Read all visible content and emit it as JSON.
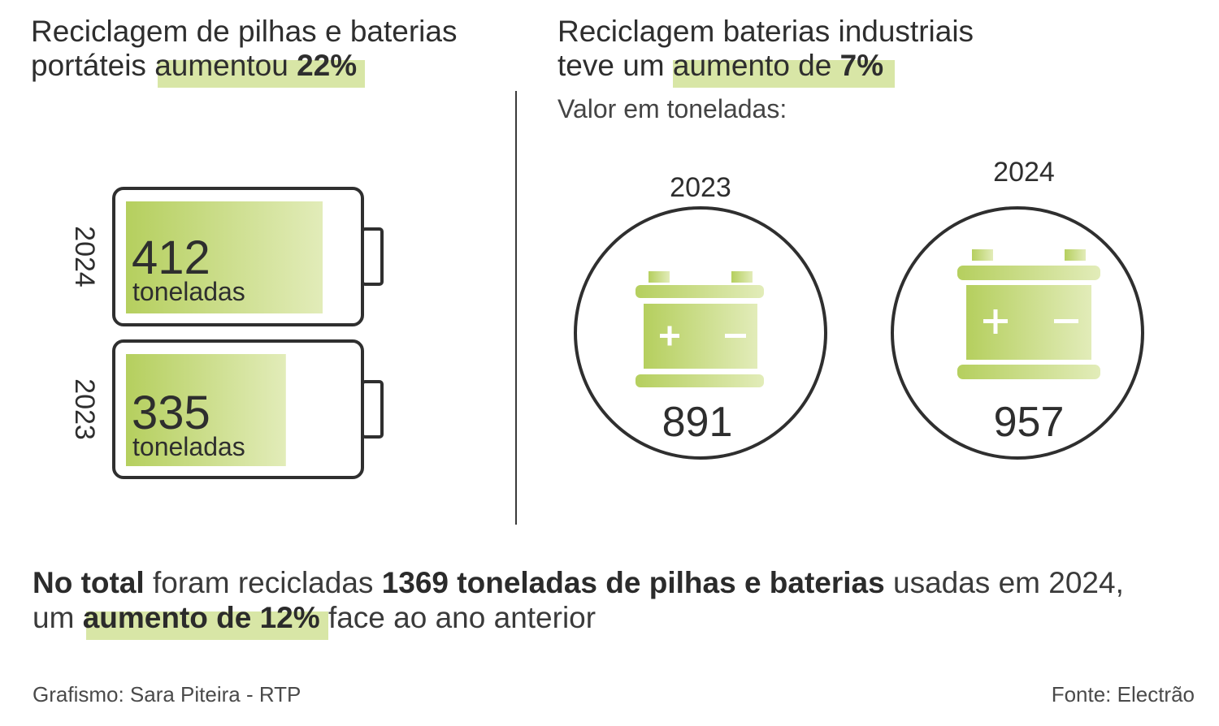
{
  "left": {
    "title_line1": "Reciclagem de pilhas e baterias",
    "title_line2_pre": "portáteis ",
    "title_line2_hl_normal": "aumentou ",
    "title_line2_hl_bold": "22%"
  },
  "right": {
    "title_line1": "Reciclagem baterias industriais",
    "title_line2_pre": "teve um ",
    "title_line2_hl_normal": "aumento de ",
    "title_line2_hl_bold": "7%",
    "subtitle": "Valor em toneladas:"
  },
  "chart_data": [
    {
      "type": "bar",
      "categories": [
        "2024",
        "2023"
      ],
      "values": [
        412,
        335
      ],
      "unit": "toneladas",
      "value_labels": [
        "412",
        "335"
      ],
      "unit_labels": [
        "toneladas",
        "toneladas"
      ]
    },
    {
      "type": "table",
      "categories": [
        "2023",
        "2024"
      ],
      "values": [
        891,
        957
      ],
      "value_labels": [
        "891",
        "957"
      ]
    }
  ],
  "total": {
    "p1_bold": "No total",
    "p1_normal": " foram recicladas ",
    "p1_bold2": "1369 toneladas de pilhas e baterias",
    "p1_normal2": " usadas em 2024,",
    "p2_pre": "um ",
    "p2_hl": "aumento de 12%",
    "p2_post": " face ao ano anterior"
  },
  "footer": {
    "credit": "Grafismo: Sara Piteira - RTP",
    "source": "Fonte: Electrão"
  },
  "colors": {
    "highlight": "#d8e6a6",
    "fill_dark": "#b5cf5e",
    "fill_light": "#e2ecb9",
    "outline": "#2f2f2f"
  },
  "icons": [
    "battery-outline-icon",
    "car-battery-icon"
  ]
}
